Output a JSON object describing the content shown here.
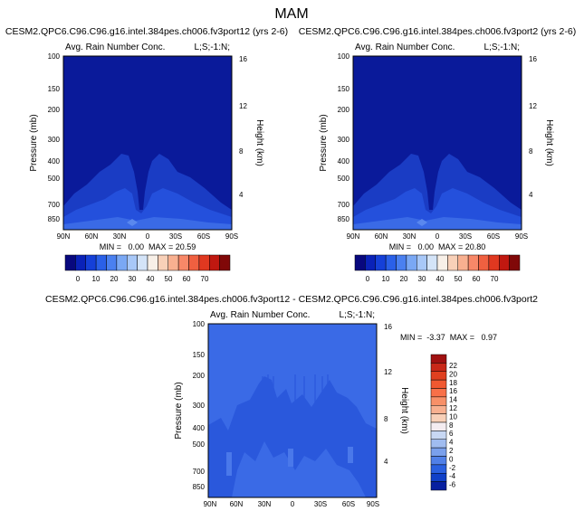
{
  "figure": {
    "title": "MAM"
  },
  "chart_data": [
    {
      "type": "heatmap",
      "title": "CESM2.QPC6.C96.C96.g16.intel.384pes.ch006.fv3port12 (yrs 2-6)",
      "subtitle_left": "Avg. Rain Number Conc.",
      "subtitle_right": "L;S;-1:N;",
      "ylabel": "Pressure (mb)",
      "ylabel_right": "Height (km)",
      "x_ticks": [
        "90N",
        "60N",
        "30N",
        "0",
        "30S",
        "60S",
        "90S"
      ],
      "y_ticks": [
        "100",
        "150",
        "200",
        "300",
        "400",
        "500",
        "700",
        "850"
      ],
      "height_ticks": [
        "16",
        "12",
        "8",
        "4"
      ],
      "stats": "MIN =   0.00  MAX = 20.59",
      "colorbar": {
        "labels": [
          "0",
          "10",
          "20",
          "30",
          "40",
          "50",
          "60",
          "70"
        ],
        "colors": [
          "#08087e",
          "#0a22b8",
          "#1540d8",
          "#2a60e8",
          "#4a80f0",
          "#7aa8f4",
          "#a8c8f8",
          "#d4e4f8",
          "#f8f0e8",
          "#f8d0b8",
          "#f8b090",
          "#f88868",
          "#f06040",
          "#e03820",
          "#c01810",
          "#800808"
        ]
      }
    },
    {
      "type": "heatmap",
      "title": "CESM2.QPC6.C96.C96.g16.intel.384pes.ch006.fv3port2 (yrs 2-6)",
      "subtitle_left": "Avg. Rain Number Conc.",
      "subtitle_right": "L;S;-1:N;",
      "ylabel": "Pressure (mb)",
      "ylabel_right": "Height (km)",
      "x_ticks": [
        "90N",
        "60N",
        "30N",
        "0",
        "30S",
        "60S",
        "90S"
      ],
      "y_ticks": [
        "100",
        "150",
        "200",
        "300",
        "400",
        "500",
        "700",
        "850"
      ],
      "height_ticks": [
        "16",
        "12",
        "8",
        "4"
      ],
      "stats": "MIN =   0.00  MAX = 20.80",
      "colorbar": {
        "labels": [
          "0",
          "10",
          "20",
          "30",
          "40",
          "50",
          "60",
          "70"
        ],
        "colors": [
          "#08087e",
          "#0a22b8",
          "#1540d8",
          "#2a60e8",
          "#4a80f0",
          "#7aa8f4",
          "#a8c8f8",
          "#d4e4f8",
          "#f8f0e8",
          "#f8d0b8",
          "#f8b090",
          "#f88868",
          "#f06040",
          "#e03820",
          "#c01810",
          "#800808"
        ]
      }
    },
    {
      "type": "heatmap",
      "title": "CESM2.QPC6.C96.C96.g16.intel.384pes.ch006.fv3port12 - CESM2.QPC6.C96.C96.g16.intel.384pes.ch006.fv3port2",
      "subtitle_left": "Avg. Rain Number Conc.",
      "subtitle_right": "L;S;-1:N;",
      "ylabel": "Pressure (mb)",
      "ylabel_right": "Height (km)",
      "x_ticks": [
        "90N",
        "60N",
        "30N",
        "0",
        "30S",
        "60S",
        "90S"
      ],
      "y_ticks": [
        "100",
        "150",
        "200",
        "300",
        "400",
        "500",
        "700",
        "850"
      ],
      "height_ticks": [
        "16",
        "12",
        "8",
        "4"
      ],
      "stats": "MIN =  -3.37  MAX =   0.97",
      "colorbar": {
        "labels": [
          "22",
          "20",
          "18",
          "16",
          "14",
          "12",
          "10",
          "8",
          "6",
          "4",
          "2",
          "0",
          "-2",
          "-4",
          "-6"
        ],
        "colors": [
          "#a01010",
          "#c82818",
          "#e04020",
          "#f05830",
          "#f87048",
          "#f89068",
          "#f8b090",
          "#f8d0b8",
          "#f4ecf0",
          "#c8d8f4",
          "#a0bcf0",
          "#7aa0ec",
          "#5080e8",
          "#2a60e0",
          "#1040c8",
          "#0820a0"
        ]
      }
    }
  ]
}
